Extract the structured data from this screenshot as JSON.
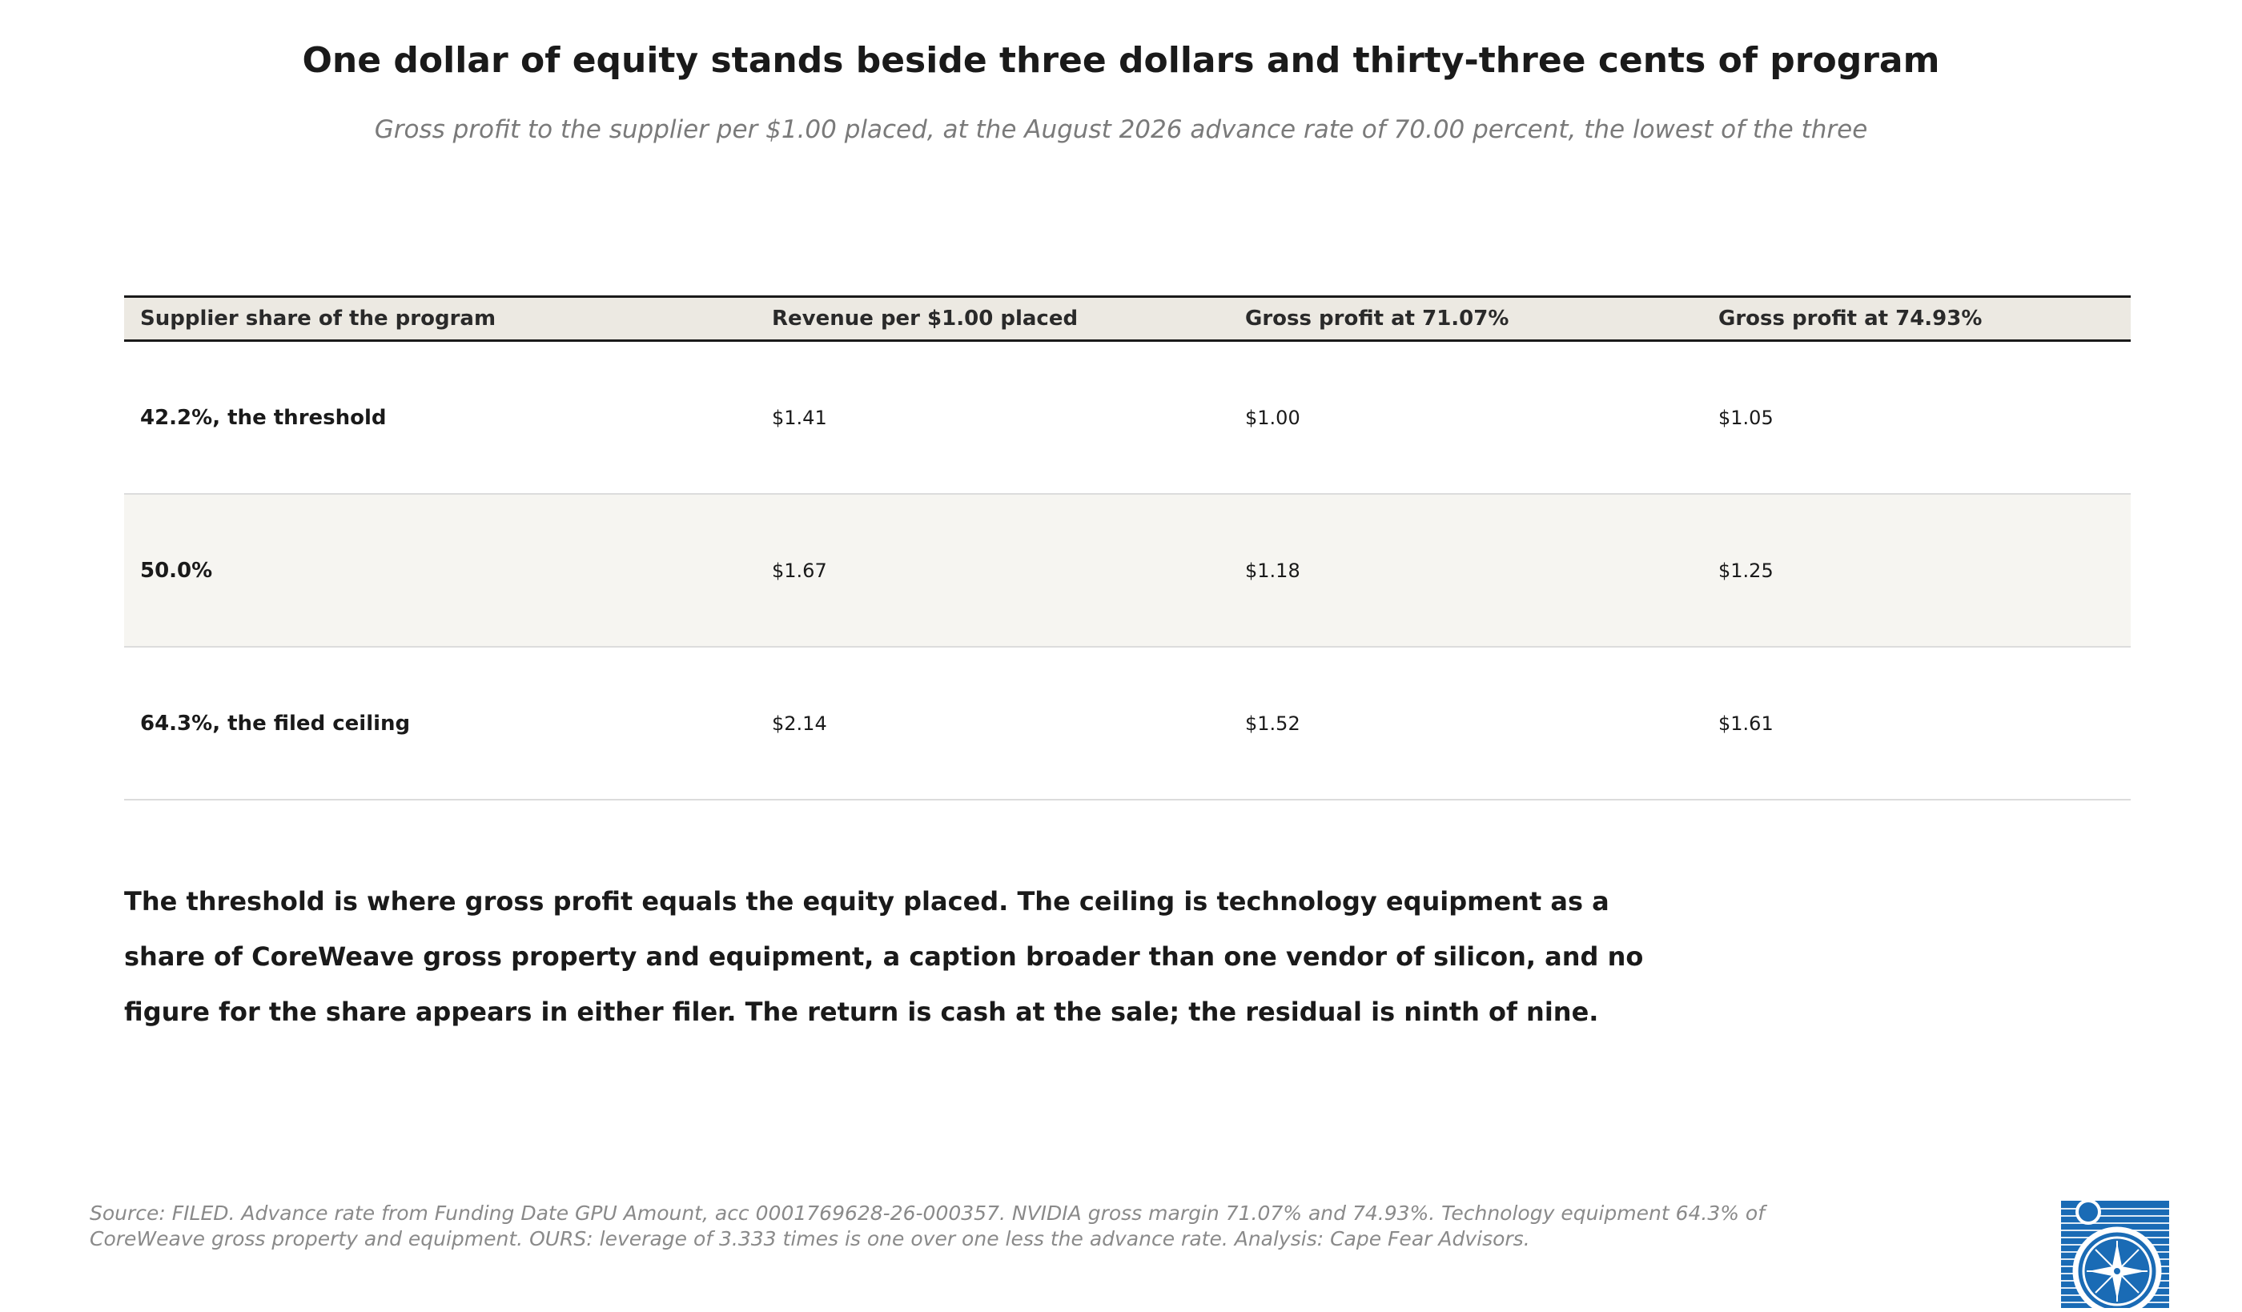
{
  "header": {
    "title": "One dollar of equity stands beside three dollars and thirty-three cents of program",
    "subtitle": "Gross profit to the supplier per $1.00 placed, at the August 2026 advance rate of 70.00 percent, the lowest of the three"
  },
  "table": {
    "columns": [
      "Supplier share of the program",
      "Revenue per $1.00 placed",
      "Gross profit at 71.07%",
      "Gross profit at 74.93%"
    ],
    "rows": [
      [
        "42.2%, the threshold",
        "$1.41",
        "$1.00",
        "$1.05"
      ],
      [
        "50.0%",
        "$1.67",
        "$1.18",
        "$1.25"
      ],
      [
        "64.3%, the filed ceiling",
        "$2.14",
        "$1.52",
        "$1.61"
      ]
    ]
  },
  "note": {
    "lines": [
      "The threshold is where gross profit equals the equity placed. The ceiling is technology equipment as a",
      "share of CoreWeave gross property and equipment, a caption broader than one vendor of silicon, and no",
      "figure for the share appears in either filer. The return is cash at the sale; the residual is ninth of nine."
    ]
  },
  "source": {
    "lines": [
      "Source: FILED. Advance rate from Funding Date GPU Amount, acc 0001769628-26-000357. NVIDIA gross margin 71.07% and 74.93%. Technology equipment 64.3% of",
      "CoreWeave gross property and equipment. OURS: leverage of 3.333 times is one over one less the advance rate. Analysis: Cape Fear Advisors."
    ]
  },
  "logo": {
    "icon": "compass-rose-seal-icon",
    "color": "#1a6bb5"
  },
  "colors": {
    "header_background": "#ece9e2",
    "alt_row_background": "#f6f5f1",
    "rule": "#1a1a1a",
    "divider": "#dcdcdc",
    "subtitle": "#7a7a7a",
    "source": "#8a8a8a"
  }
}
